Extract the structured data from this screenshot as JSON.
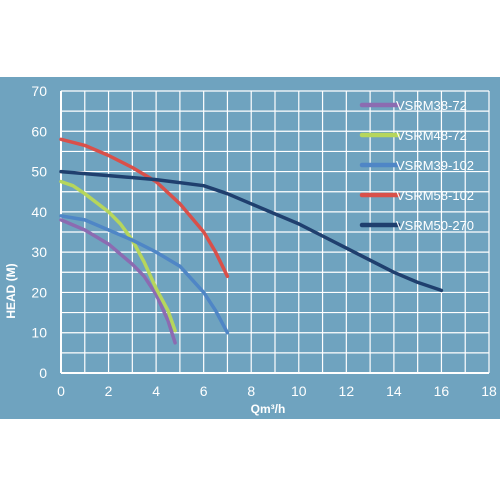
{
  "chart_data": {
    "type": "line",
    "xlabel": "Qm³/h",
    "ylabel": "HEAD (M)",
    "xlim": [
      0,
      18
    ],
    "ylim": [
      0,
      70
    ],
    "x_ticks": [
      0,
      2,
      4,
      6,
      8,
      10,
      12,
      14,
      16,
      18
    ],
    "y_ticks": [
      0,
      10,
      20,
      30,
      40,
      50,
      60,
      70
    ],
    "grid": true,
    "legend_position": "top-right",
    "colors": {
      "background": "#6fa3bf",
      "grid": "#ffffff",
      "text": "#ffffff"
    },
    "series": [
      {
        "name": "VSRM38-72",
        "color": "#8c6bb1",
        "points": [
          [
            0,
            38
          ],
          [
            1,
            35.5
          ],
          [
            2,
            32
          ],
          [
            3,
            27
          ],
          [
            3.5,
            24
          ],
          [
            4,
            19.5
          ],
          [
            4.5,
            13
          ],
          [
            4.8,
            7.5
          ]
        ]
      },
      {
        "name": "VSRM48-72",
        "color": "#b6d65c",
        "points": [
          [
            0,
            47.5
          ],
          [
            0.5,
            46.5
          ],
          [
            1,
            44.5
          ],
          [
            2,
            40
          ],
          [
            2.5,
            37
          ],
          [
            3,
            33
          ],
          [
            3.5,
            27.5
          ],
          [
            4,
            21
          ],
          [
            4.5,
            15.5
          ],
          [
            4.8,
            10.5
          ]
        ]
      },
      {
        "name": "VSRM39-102",
        "color": "#4f86c6",
        "points": [
          [
            0,
            39
          ],
          [
            1,
            38
          ],
          [
            2,
            35.5
          ],
          [
            3,
            33
          ],
          [
            4,
            30
          ],
          [
            5,
            26.5
          ],
          [
            6,
            20
          ],
          [
            6.5,
            15.5
          ],
          [
            7,
            10
          ]
        ]
      },
      {
        "name": "VSRM58-102",
        "color": "#d9504a",
        "points": [
          [
            0,
            58
          ],
          [
            1,
            56.5
          ],
          [
            2,
            54
          ],
          [
            3,
            51
          ],
          [
            4,
            47.5
          ],
          [
            5,
            42
          ],
          [
            6,
            35
          ],
          [
            6.5,
            30
          ],
          [
            7,
            24
          ]
        ]
      },
      {
        "name": "VSRM50-270",
        "color": "#1f3f6e",
        "points": [
          [
            0,
            50
          ],
          [
            2,
            49
          ],
          [
            4,
            48
          ],
          [
            6,
            46.5
          ],
          [
            7,
            44.5
          ],
          [
            8,
            42
          ],
          [
            9,
            39.5
          ],
          [
            10,
            37
          ],
          [
            11,
            34
          ],
          [
            12,
            31
          ],
          [
            13,
            28
          ],
          [
            14,
            25
          ],
          [
            15,
            22.5
          ],
          [
            16,
            20.5
          ]
        ]
      }
    ]
  }
}
